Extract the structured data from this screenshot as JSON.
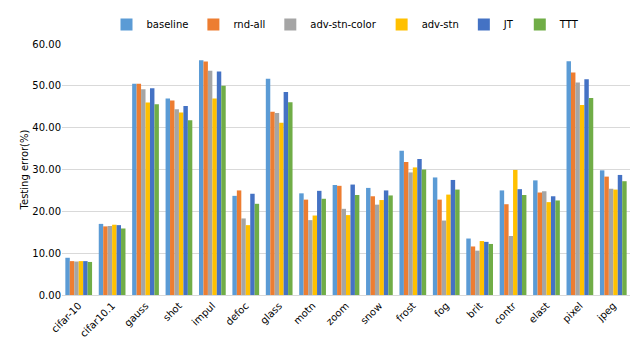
{
  "chart_data": {
    "type": "bar",
    "y_label": "Testing error(%)",
    "categories": [
      "cifar-10",
      "cifar10.1",
      "gauss",
      "shot",
      "impul",
      "defoc",
      "glass",
      "motn",
      "zoom",
      "snow",
      "frost",
      "fog",
      "brit",
      "contr",
      "elast",
      "pixel",
      "jpeg"
    ],
    "series": [
      {
        "name": "baseline",
        "color": "#5B9BD5",
        "values": [
          8.9,
          17.0,
          50.5,
          47.0,
          56.1,
          23.7,
          51.7,
          24.3,
          26.3,
          25.6,
          34.5,
          28.1,
          13.5,
          25.0,
          27.4,
          55.9,
          29.8
        ]
      },
      {
        "name": "rnd-all",
        "color": "#ED7D31",
        "values": [
          8.1,
          16.4,
          50.5,
          46.5,
          55.8,
          25.0,
          43.8,
          22.8,
          26.1,
          23.6,
          31.8,
          22.8,
          11.6,
          21.7,
          24.5,
          53.2,
          28.3
        ]
      },
      {
        "name": "adv-stn-color",
        "color": "#A5A5A5",
        "values": [
          8.0,
          16.5,
          49.2,
          44.4,
          53.6,
          18.3,
          43.5,
          17.9,
          20.6,
          21.6,
          29.3,
          17.8,
          10.6,
          14.1,
          24.8,
          50.8,
          25.4
        ]
      },
      {
        "name": "adv-stn",
        "color": "#FFC000",
        "values": [
          8.1,
          16.8,
          46.0,
          43.6,
          47.0,
          16.7,
          41.2,
          19.0,
          19.1,
          22.7,
          30.5,
          24.0,
          12.9,
          29.9,
          22.2,
          45.4,
          25.2
        ]
      },
      {
        "name": "JT",
        "color": "#4472C4",
        "values": [
          8.1,
          16.7,
          49.4,
          45.2,
          53.4,
          24.2,
          48.5,
          24.9,
          26.4,
          25.0,
          32.5,
          27.5,
          12.7,
          25.3,
          23.6,
          51.6,
          28.7
        ]
      },
      {
        "name": "TTT",
        "color": "#70AD47",
        "values": [
          7.9,
          15.9,
          45.6,
          41.8,
          50.0,
          21.8,
          46.1,
          23.0,
          23.9,
          23.8,
          30.0,
          25.2,
          12.2,
          23.9,
          22.6,
          47.1,
          27.2
        ]
      }
    ],
    "ylim": [
      0,
      60
    ],
    "yticks": [
      {
        "value": 0,
        "label": "0.00"
      },
      {
        "value": 10,
        "label": "10.00"
      },
      {
        "value": 20,
        "label": "20.00"
      },
      {
        "value": 30,
        "label": "30.00"
      },
      {
        "value": 40,
        "label": "40.00"
      },
      {
        "value": 50,
        "label": "50.00"
      },
      {
        "value": 60,
        "label": "60.00"
      }
    ],
    "grid": true,
    "legend": "top"
  }
}
